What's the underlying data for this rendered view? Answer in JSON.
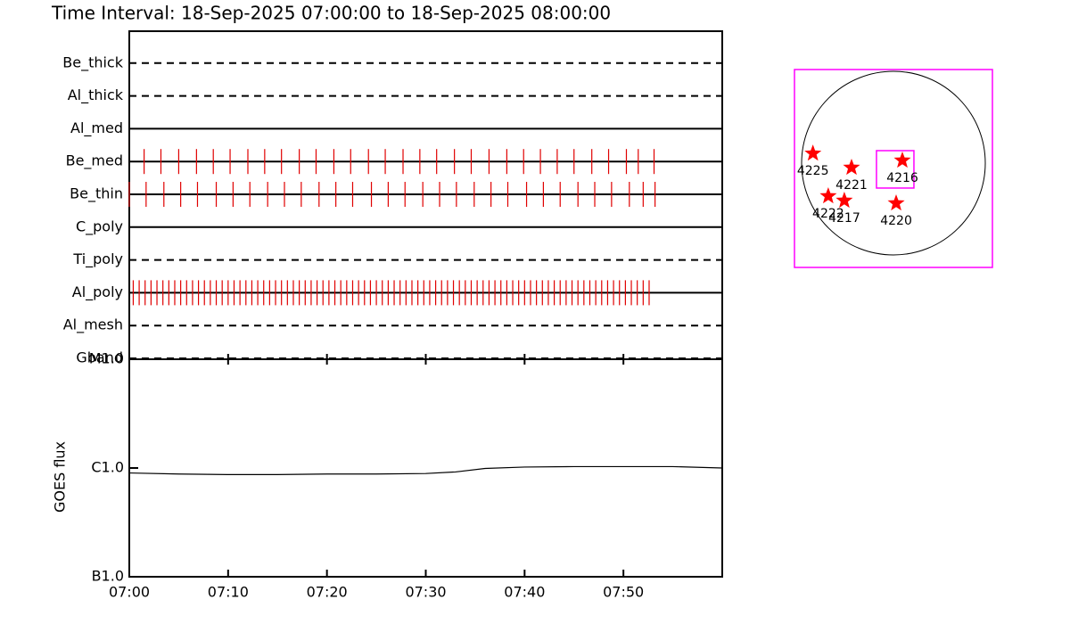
{
  "chart_data": [
    {
      "type": "timeline",
      "title": "Time Interval: 18-Sep-2025 07:00:00 to 18-Sep-2025 08:00:00",
      "categories": [
        "Be_thick",
        "Al_thick",
        "Al_med",
        "Be_med",
        "Be_thin",
        "C_poly",
        "Ti_poly",
        "Al_poly",
        "Al_mesh",
        "Gband"
      ],
      "line_styles": [
        "dashed",
        "dashed",
        "solid",
        "solid",
        "solid",
        "solid",
        "dashed",
        "solid",
        "dashed",
        "dashed"
      ],
      "color": "#e00000",
      "xlim": [
        0,
        60
      ],
      "events": [
        [],
        [],
        [],
        [
          1.5,
          3.2,
          5.0,
          6.8,
          8.5,
          10.2,
          12.0,
          13.7,
          15.4,
          17.2,
          18.9,
          20.7,
          22.4,
          24.2,
          25.9,
          27.7,
          29.4,
          31.1,
          32.9,
          34.6,
          36.4,
          38.2,
          39.9,
          41.6,
          43.3,
          45.0,
          46.8,
          48.5,
          50.3,
          51.5,
          53.1
        ],
        [
          0.0,
          1.7,
          3.5,
          5.2,
          6.9,
          8.8,
          10.5,
          12.2,
          14.0,
          15.7,
          17.4,
          19.2,
          20.9,
          22.6,
          24.5,
          26.2,
          27.9,
          29.7,
          31.4,
          33.1,
          34.9,
          36.6,
          38.3,
          40.2,
          41.9,
          43.6,
          45.4,
          47.1,
          48.8,
          50.6,
          52.0,
          53.2
        ],
        [],
        [],
        [
          0.4,
          1,
          1.6,
          2.2,
          2.8,
          3.4,
          4,
          4.6,
          5.2,
          5.8,
          6.4,
          7,
          7.6,
          8.2,
          8.8,
          9.4,
          10,
          10.6,
          11.2,
          11.8,
          12.4,
          13,
          13.6,
          14.2,
          14.8,
          15.4,
          16,
          16.6,
          17.2,
          17.8,
          18.4,
          19,
          19.6,
          20.2,
          20.8,
          21.4,
          22,
          22.6,
          23.2,
          23.8,
          24.4,
          25,
          25.6,
          26.2,
          26.8,
          27.4,
          28,
          28.6,
          29.2,
          29.8,
          30.4,
          31,
          31.6,
          32.2,
          32.8,
          33.4,
          34,
          34.6,
          35.2,
          35.8,
          36.4,
          37,
          37.6,
          38.2,
          38.8,
          39.4,
          40,
          40.6,
          41.2,
          41.8,
          42.4,
          43,
          43.6,
          44.2,
          44.8,
          45.4,
          46,
          46.6,
          47.2,
          47.8,
          48.4,
          49,
          49.6,
          50.2,
          50.8,
          51.4,
          52,
          52.6
        ],
        [],
        []
      ]
    },
    {
      "type": "line",
      "ylabel": "GOES flux",
      "log_scale": true,
      "color": "#000000",
      "x": [
        0,
        5,
        10,
        15,
        20,
        25,
        30,
        33,
        36,
        40,
        45,
        50,
        55,
        60
      ],
      "values": [
        9e-07,
        8.8e-07,
        8.7e-07,
        8.7e-07,
        8.8e-07,
        8.8e-07,
        8.9e-07,
        9.2e-07,
        9.9e-07,
        1.02e-06,
        1.03e-06,
        1.03e-06,
        1.03e-06,
        1e-06
      ],
      "xlim": [
        0,
        60
      ],
      "xticks": [
        {
          "value": 0,
          "label": "07:00"
        },
        {
          "value": 10,
          "label": "07:10"
        },
        {
          "value": 20,
          "label": "07:20"
        },
        {
          "value": 30,
          "label": "07:30"
        },
        {
          "value": 40,
          "label": "07:40"
        },
        {
          "value": 50,
          "label": "07:50"
        }
      ],
      "ylim": [
        1e-07,
        1e-05
      ],
      "yticks": [
        {
          "value": 1e-07,
          "label": "B1.0"
        },
        {
          "value": 1e-06,
          "label": "C1.0"
        },
        {
          "value": 1e-05,
          "label": "M1.0"
        }
      ]
    },
    {
      "type": "map",
      "labels": [
        "4225",
        "4221",
        "4216",
        "4222",
        "4217",
        "4220"
      ],
      "x": [
        -830,
        -432,
        92,
        -672,
        -506,
        28
      ],
      "y": [
        100,
        -46,
        28,
        -340,
        -386,
        -414
      ],
      "color": "#ff0000",
      "frame_color": "#ff00ff",
      "fov": {
        "x": 18,
        "y": -64,
        "size": 386
      },
      "xlim": [
        -1020,
        1020
      ],
      "ylim": [
        -1076,
        966
      ]
    }
  ]
}
